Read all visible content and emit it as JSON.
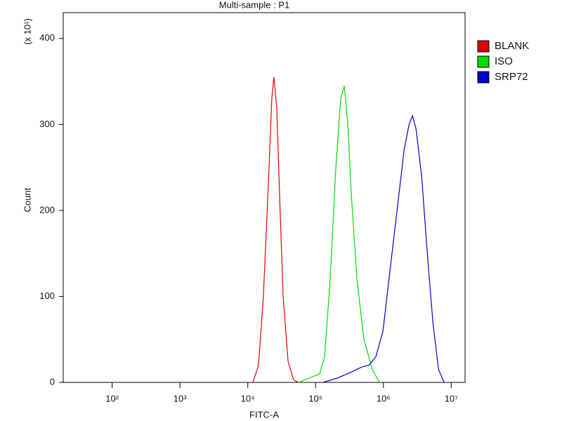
{
  "chart_data": {
    "type": "line",
    "title": "Multi-sample : P1",
    "x_label": "FITC-A",
    "y_label": "Count",
    "y_unit_note": "(x 10¹)",
    "x_log": true,
    "xlim": [
      19,
      16000000
    ],
    "xticks": [
      {
        "value": 100,
        "label": "10²"
      },
      {
        "value": 1000,
        "label": "10³"
      },
      {
        "value": 10000,
        "label": "10⁴"
      },
      {
        "value": 100000,
        "label": "10⁵"
      },
      {
        "value": 1000000,
        "label": "10⁶"
      },
      {
        "value": 10000000,
        "label": "10⁷"
      }
    ],
    "ylim": [
      0,
      430
    ],
    "yticks": [
      0,
      100,
      200,
      300,
      400
    ],
    "legend": "upper-right",
    "series": [
      {
        "name": "BLANK",
        "color": "#e00000",
        "x": [
          11900,
          14400,
          17000,
          20100,
          22600,
          24300,
          26700,
          29400,
          33200,
          39200,
          47400,
          56100
        ],
        "values": [
          0,
          20,
          100,
          230,
          330,
          355,
          320,
          220,
          100,
          25,
          3,
          0
        ]
      },
      {
        "name": "ISO",
        "color": "#00dd00",
        "x": [
          56100,
          80300,
          115000,
          136000,
          164000,
          199000,
          235000,
          265000,
          299000,
          336000,
          407000,
          517000,
          689000,
          875000
        ],
        "values": [
          0,
          5,
          10,
          30,
          120,
          250,
          330,
          345,
          300,
          220,
          120,
          50,
          15,
          0
        ]
      },
      {
        "name": "SRP72",
        "color": "#0000cc",
        "x": [
          129000,
          209000,
          336000,
          482000,
          611000,
          776000,
          986000,
          1250000,
          1590000,
          2020000,
          2390000,
          2690000,
          3030000,
          3660000,
          4440000,
          5370000,
          6500000,
          7870000
        ],
        "values": [
          0,
          5,
          12,
          18,
          20,
          30,
          60,
          130,
          200,
          270,
          300,
          310,
          295,
          240,
          150,
          70,
          15,
          0
        ]
      }
    ]
  }
}
